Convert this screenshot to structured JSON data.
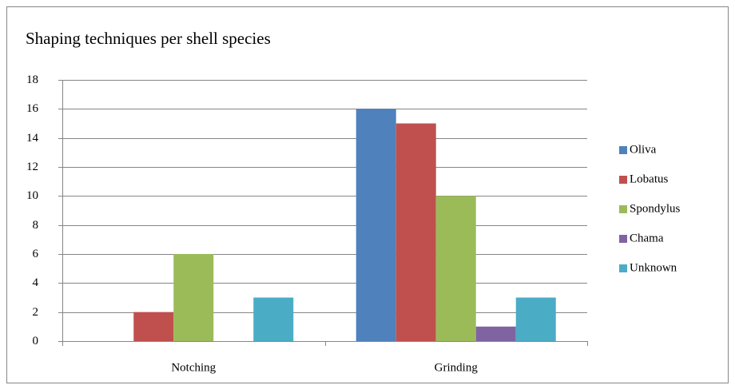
{
  "chart_data": {
    "type": "bar",
    "title": "Shaping techniques per shell  species",
    "categories": [
      "Notching",
      "Grinding"
    ],
    "series": [
      {
        "name": "Oliva",
        "color": "#4f81bd",
        "values": [
          0,
          16
        ]
      },
      {
        "name": "Lobatus",
        "color": "#c0504d",
        "values": [
          2,
          15
        ]
      },
      {
        "name": "Spondylus",
        "color": "#9bbb59",
        "values": [
          6,
          10
        ]
      },
      {
        "name": "Chama",
        "color": "#8064a2",
        "values": [
          0,
          1
        ]
      },
      {
        "name": "Unknown",
        "color": "#4bacc6",
        "values": [
          3,
          3
        ]
      }
    ],
    "ylim": [
      0,
      18
    ],
    "yticks": [
      0,
      2,
      4,
      6,
      8,
      10,
      12,
      14,
      16,
      18
    ],
    "grid": true,
    "legend": "right"
  }
}
